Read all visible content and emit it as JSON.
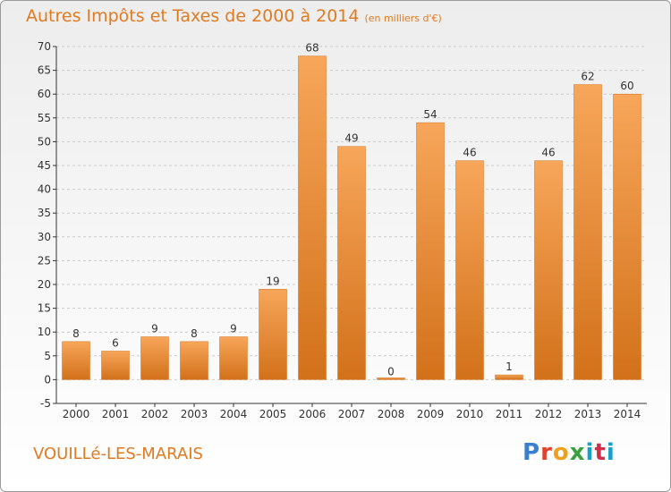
{
  "title": "Autres Impôts et Taxes de 2000 à 2014",
  "subtitle": "(en milliers d'€)",
  "commune": "VOUILLé-LES-MARAIS",
  "logo_text": "Proxiti",
  "colors": {
    "title": "#e07a20",
    "bar_light": "#f7a65a",
    "bar_dark": "#d2711a",
    "axis": "#333333",
    "grid": "#cccccc"
  },
  "chart_data": {
    "type": "bar",
    "title": "Autres Impôts et Taxes de 2000 à 2014",
    "subtitle": "(en milliers d'€)",
    "categories": [
      "2000",
      "2001",
      "2002",
      "2003",
      "2004",
      "2005",
      "2006",
      "2007",
      "2008",
      "2009",
      "2010",
      "2011",
      "2012",
      "2013",
      "2014"
    ],
    "values": [
      8,
      6,
      9,
      8,
      9,
      19,
      68,
      49,
      0,
      54,
      46,
      1,
      46,
      62,
      60
    ],
    "data_labels": [
      "8",
      "6",
      "9",
      "8",
      "9",
      "19",
      "68",
      "49",
      "0",
      "54",
      "46",
      "1",
      "46",
      "62",
      "60"
    ],
    "ylim": [
      -5,
      70
    ],
    "yticks": [
      -5,
      0,
      5,
      10,
      15,
      20,
      25,
      30,
      35,
      40,
      45,
      50,
      55,
      60,
      65,
      70
    ],
    "xlabel": "",
    "ylabel": "",
    "grid": "horizontal dashed"
  }
}
